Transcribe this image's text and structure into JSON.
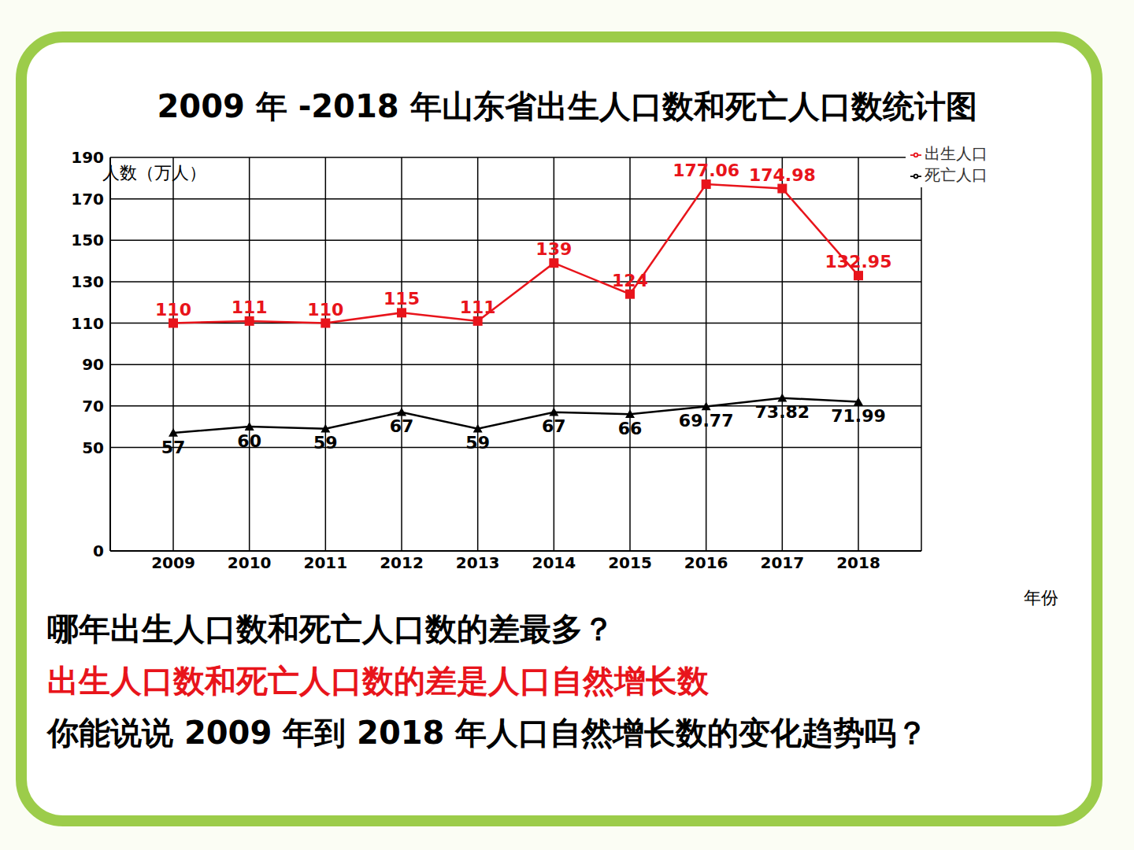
{
  "chart_data": {
    "type": "line",
    "title": "2009 年 -2018 年山东省出生人口数和死亡人口数统计图",
    "y_label": "人数（万人）",
    "x_label": "年份",
    "categories": [
      "2009",
      "2010",
      "2011",
      "2012",
      "2013",
      "2014",
      "2015",
      "2016",
      "2017",
      "2018"
    ],
    "series": [
      {
        "name": "出生人口",
        "color": "#e8141b",
        "marker": "square",
        "values": [
          110,
          111,
          110,
          115,
          111,
          139,
          124,
          177.06,
          174.98,
          132.95
        ]
      },
      {
        "name": "死亡人口",
        "color": "#000000",
        "marker": "triangle",
        "values": [
          57,
          60,
          59,
          67,
          59,
          67,
          66,
          69.77,
          73.82,
          71.99
        ]
      }
    ],
    "ylim": [
      0,
      190
    ],
    "yticks": [
      0,
      50,
      70,
      90,
      110,
      130,
      150,
      170,
      190
    ],
    "grid": true,
    "legend": "top right",
    "data_labels": true,
    "annotations": [
      "哪年出生人口数和死亡人口数的差最多？",
      "出生人口数和死亡人口数的差是人口自然增长数",
      "你能说说 2009 年到 2018 年人口自然增长数的变化趋势吗？"
    ]
  }
}
